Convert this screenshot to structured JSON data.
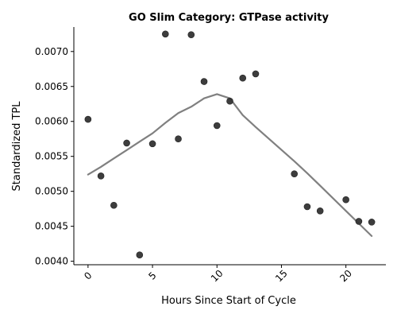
{
  "chart_data": {
    "type": "scatter",
    "title": "GO Slim Category: GTPase activity",
    "xlabel": "Hours Since Start of Cycle",
    "ylabel": "Standardized TPL",
    "xlim": [
      -1.1,
      23.1
    ],
    "ylim": [
      0.00395,
      0.00735
    ],
    "x_ticks": [
      0,
      5,
      10,
      15,
      20
    ],
    "y_ticks": [
      0.004,
      0.0045,
      0.005,
      0.0055,
      0.006,
      0.0065,
      0.007
    ],
    "x_tick_labels": [
      "0",
      "5",
      "10",
      "15",
      "20"
    ],
    "y_tick_labels": [
      "0.0040",
      "0.0045",
      "0.0050",
      "0.0055",
      "0.0060",
      "0.0065",
      "0.0070"
    ],
    "grid": false,
    "legend": "none",
    "series": [
      {
        "kind": "points",
        "color": "#333333",
        "x": [
          0,
          1,
          2,
          3,
          4,
          5,
          6,
          7,
          8,
          9,
          10,
          11,
          12,
          13,
          16,
          17,
          18,
          20,
          21,
          22
        ],
        "y": [
          0.00603,
          0.00522,
          0.0048,
          0.00569,
          0.00409,
          0.00568,
          0.00725,
          0.00575,
          0.00724,
          0.00657,
          0.00594,
          0.00629,
          0.00662,
          0.00668,
          0.00525,
          0.00478,
          0.00472,
          0.00488,
          0.00457,
          0.00456
        ]
      },
      {
        "kind": "trend-line",
        "color": "#808080",
        "x": [
          0,
          1,
          2,
          3,
          4,
          5,
          6,
          7,
          8,
          9,
          10,
          11,
          12,
          13,
          16,
          17,
          18,
          20,
          21,
          22
        ],
        "y": [
          0.00524,
          0.00535,
          0.00547,
          0.00559,
          0.00571,
          0.00583,
          0.00598,
          0.00612,
          0.00621,
          0.00633,
          0.00639,
          0.00633,
          0.00609,
          0.00592,
          0.00543,
          0.00526,
          0.00508,
          0.00472,
          0.00454,
          0.00436
        ]
      }
    ]
  }
}
